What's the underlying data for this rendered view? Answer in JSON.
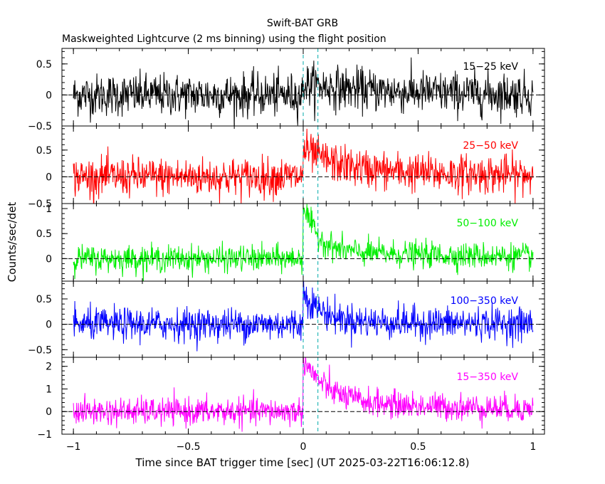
{
  "title": "Swift-BAT GRB",
  "subtitle": "Maskweighted Lightcurve (2 ms binning) using the flight position",
  "chart_data": {
    "type": "line",
    "title": "Swift-BAT GRB",
    "subtitle": "Maskweighted Lightcurve (2 ms binning) using the flight position",
    "xlabel": "Time since BAT trigger time [sec] (UT 2025-03-22T16:06:12.8)",
    "ylabel": "Counts/sec/det",
    "xlim": [
      -1.05,
      1.05
    ],
    "xticks": [
      -1,
      -0.5,
      0,
      0.5,
      1
    ],
    "xtick_labels": [
      "−1",
      "−0.5",
      "0",
      "0.5",
      "1"
    ],
    "binning_sec": 0.002,
    "x_range": [
      -1.0,
      1.0
    ],
    "vertical_lines": [
      {
        "x": 0.0,
        "style": "dashed",
        "color": "#00aaaa"
      },
      {
        "x": 0.064,
        "style": "dashed",
        "color": "#00aaaa"
      }
    ],
    "panels": [
      {
        "label": "15−25 keV",
        "color": "#000000",
        "ylim": [
          -0.5,
          0.75
        ],
        "yticks": [
          -0.5,
          0,
          0.5
        ],
        "ytick_labels": [
          "−0.5",
          "0",
          "0.5"
        ],
        "noise_sigma": 0.17,
        "peak": 0.15,
        "post_level": 0.03,
        "decay": 0.3
      },
      {
        "label": "25−50 keV",
        "color": "#ff0000",
        "ylim": [
          -0.5,
          0.95
        ],
        "yticks": [
          -0.5,
          0,
          0.5
        ],
        "ytick_labels": [
          "−0.5",
          "0",
          "0.5"
        ],
        "noise_sigma": 0.18,
        "peak": 0.4,
        "post_level": 0.12,
        "decay": 0.15
      },
      {
        "label": "50−100 keV",
        "color": "#00ee00",
        "ylim": [
          -0.45,
          1.1
        ],
        "yticks": [
          0,
          0.5,
          1
        ],
        "ytick_labels": [
          "0",
          "0.5",
          "1"
        ],
        "noise_sigma": 0.13,
        "peak": 0.95,
        "post_level": 0.15,
        "decay": 0.06
      },
      {
        "label": "100−350 keV",
        "color": "#0000ff",
        "ylim": [
          -0.65,
          0.85
        ],
        "yticks": [
          -0.5,
          0,
          0.5
        ],
        "ytick_labels": [
          "−0.5",
          "0",
          "0.5"
        ],
        "noise_sigma": 0.16,
        "peak": 0.6,
        "post_level": 0.05,
        "decay": 0.08
      },
      {
        "label": "15−350 keV",
        "color": "#ff00ff",
        "ylim": [
          -1.0,
          2.4
        ],
        "yticks": [
          -1,
          0,
          1,
          2
        ],
        "ytick_labels": [
          "−1",
          "0",
          "1",
          "2"
        ],
        "noise_sigma": 0.3,
        "peak": 1.9,
        "post_level": 0.45,
        "decay": 0.1
      }
    ]
  }
}
